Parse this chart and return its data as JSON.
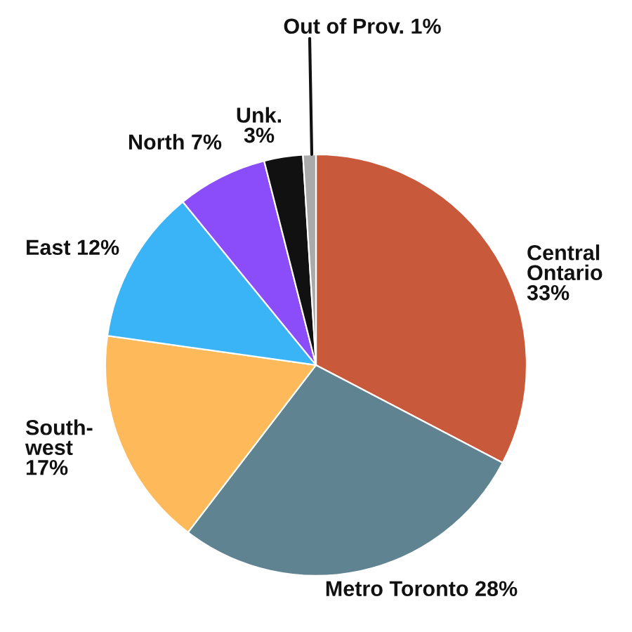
{
  "chart_data": {
    "type": "pie",
    "categories": [
      "Central\nOntario",
      "Metro Toronto",
      "South-\nwest",
      "East",
      "North",
      "Unk.",
      "Out of Prov."
    ],
    "values": [
      33,
      28,
      17,
      12,
      7,
      3,
      1
    ],
    "value_labels": [
      "33%",
      "28%",
      "17%",
      "12%",
      "7%",
      "3%",
      "1%"
    ],
    "colors": [
      "#c8593a",
      "#5f8391",
      "#fdb95a",
      "#3ab4f7",
      "#8b4dfa",
      "#111111",
      "#aaaaaa"
    ]
  }
}
